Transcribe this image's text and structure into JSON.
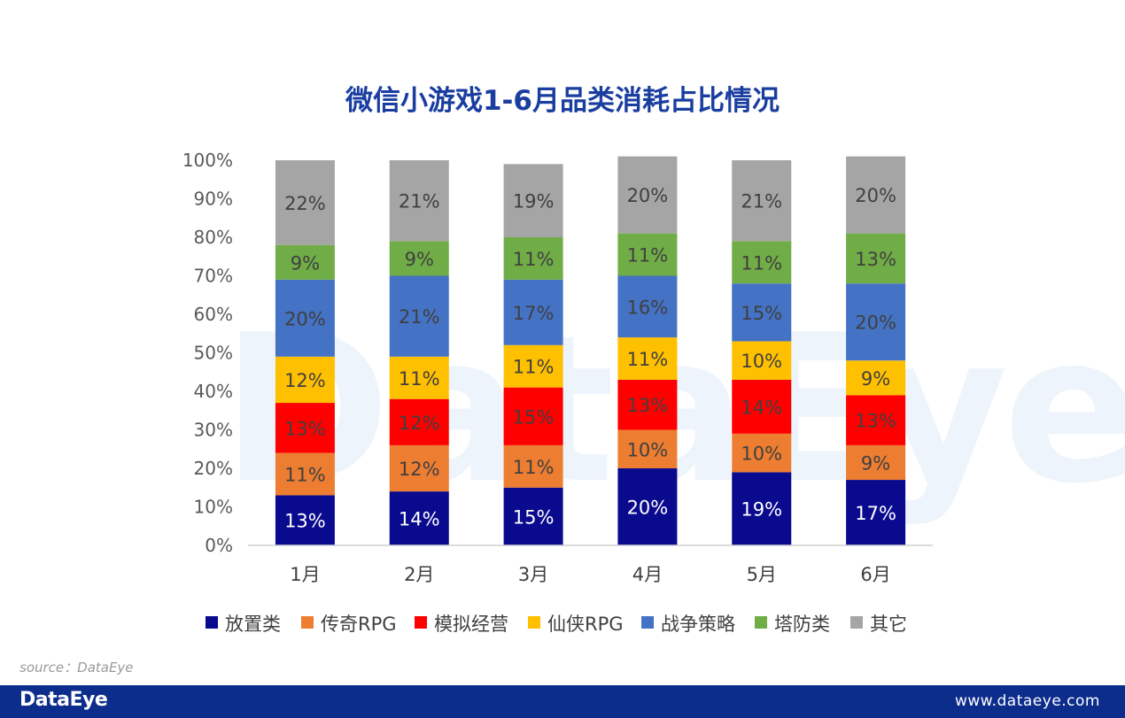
{
  "title": "微信小游戏1-6月品类消耗占比情况",
  "watermark": "DataEye",
  "source": "source：DataEye",
  "footer": {
    "logo": "DataEye",
    "url": "www.dataeye.com"
  },
  "colors": {
    "series": [
      "#0a0a8f",
      "#ed7d31",
      "#ff0000",
      "#ffc000",
      "#4472c4",
      "#70ad47",
      "#a5a5a5"
    ],
    "title": "#1a3ea0",
    "footer": "#0d2d8c"
  },
  "chart_data": {
    "type": "bar",
    "stacked": true,
    "percent": true,
    "categories": [
      "1月",
      "2月",
      "3月",
      "4月",
      "5月",
      "6月"
    ],
    "y_ticks": [
      "0%",
      "10%",
      "20%",
      "30%",
      "40%",
      "50%",
      "60%",
      "70%",
      "80%",
      "90%",
      "100%"
    ],
    "ylim": [
      0,
      100
    ],
    "legend_position": "bottom",
    "grid": false,
    "series": [
      {
        "name": "放置类",
        "values": [
          13,
          14,
          15,
          20,
          19,
          17
        ],
        "labels": [
          "13%",
          "14%",
          "15%",
          "20%",
          "19%",
          "17%"
        ]
      },
      {
        "name": "传奇RPG",
        "values": [
          11,
          12,
          11,
          10,
          10,
          9
        ],
        "labels": [
          "11%",
          "12%",
          "11%",
          "10%",
          "10%",
          "9%"
        ]
      },
      {
        "name": "模拟经营",
        "values": [
          13,
          12,
          15,
          13,
          14,
          13
        ],
        "labels": [
          "13%",
          "12%",
          "15%",
          "13%",
          "14%",
          "13%"
        ]
      },
      {
        "name": "仙侠RPG",
        "values": [
          12,
          11,
          11,
          11,
          10,
          9
        ],
        "labels": [
          "12%",
          "11%",
          "11%",
          "11%",
          "10%",
          "9%"
        ]
      },
      {
        "name": "战争策略",
        "values": [
          20,
          21,
          17,
          16,
          15,
          20
        ],
        "labels": [
          "20%",
          "21%",
          "17%",
          "16%",
          "15%",
          "20%"
        ]
      },
      {
        "name": "塔防类",
        "values": [
          9,
          9,
          11,
          11,
          11,
          13
        ],
        "labels": [
          "9%",
          "9%",
          "11%",
          "11%",
          "11%",
          "13%"
        ]
      },
      {
        "name": "其它",
        "values": [
          22,
          21,
          19,
          20,
          21,
          20
        ],
        "labels": [
          "22%",
          "21%",
          "19%",
          "20%",
          "21%",
          "20%"
        ]
      }
    ]
  }
}
